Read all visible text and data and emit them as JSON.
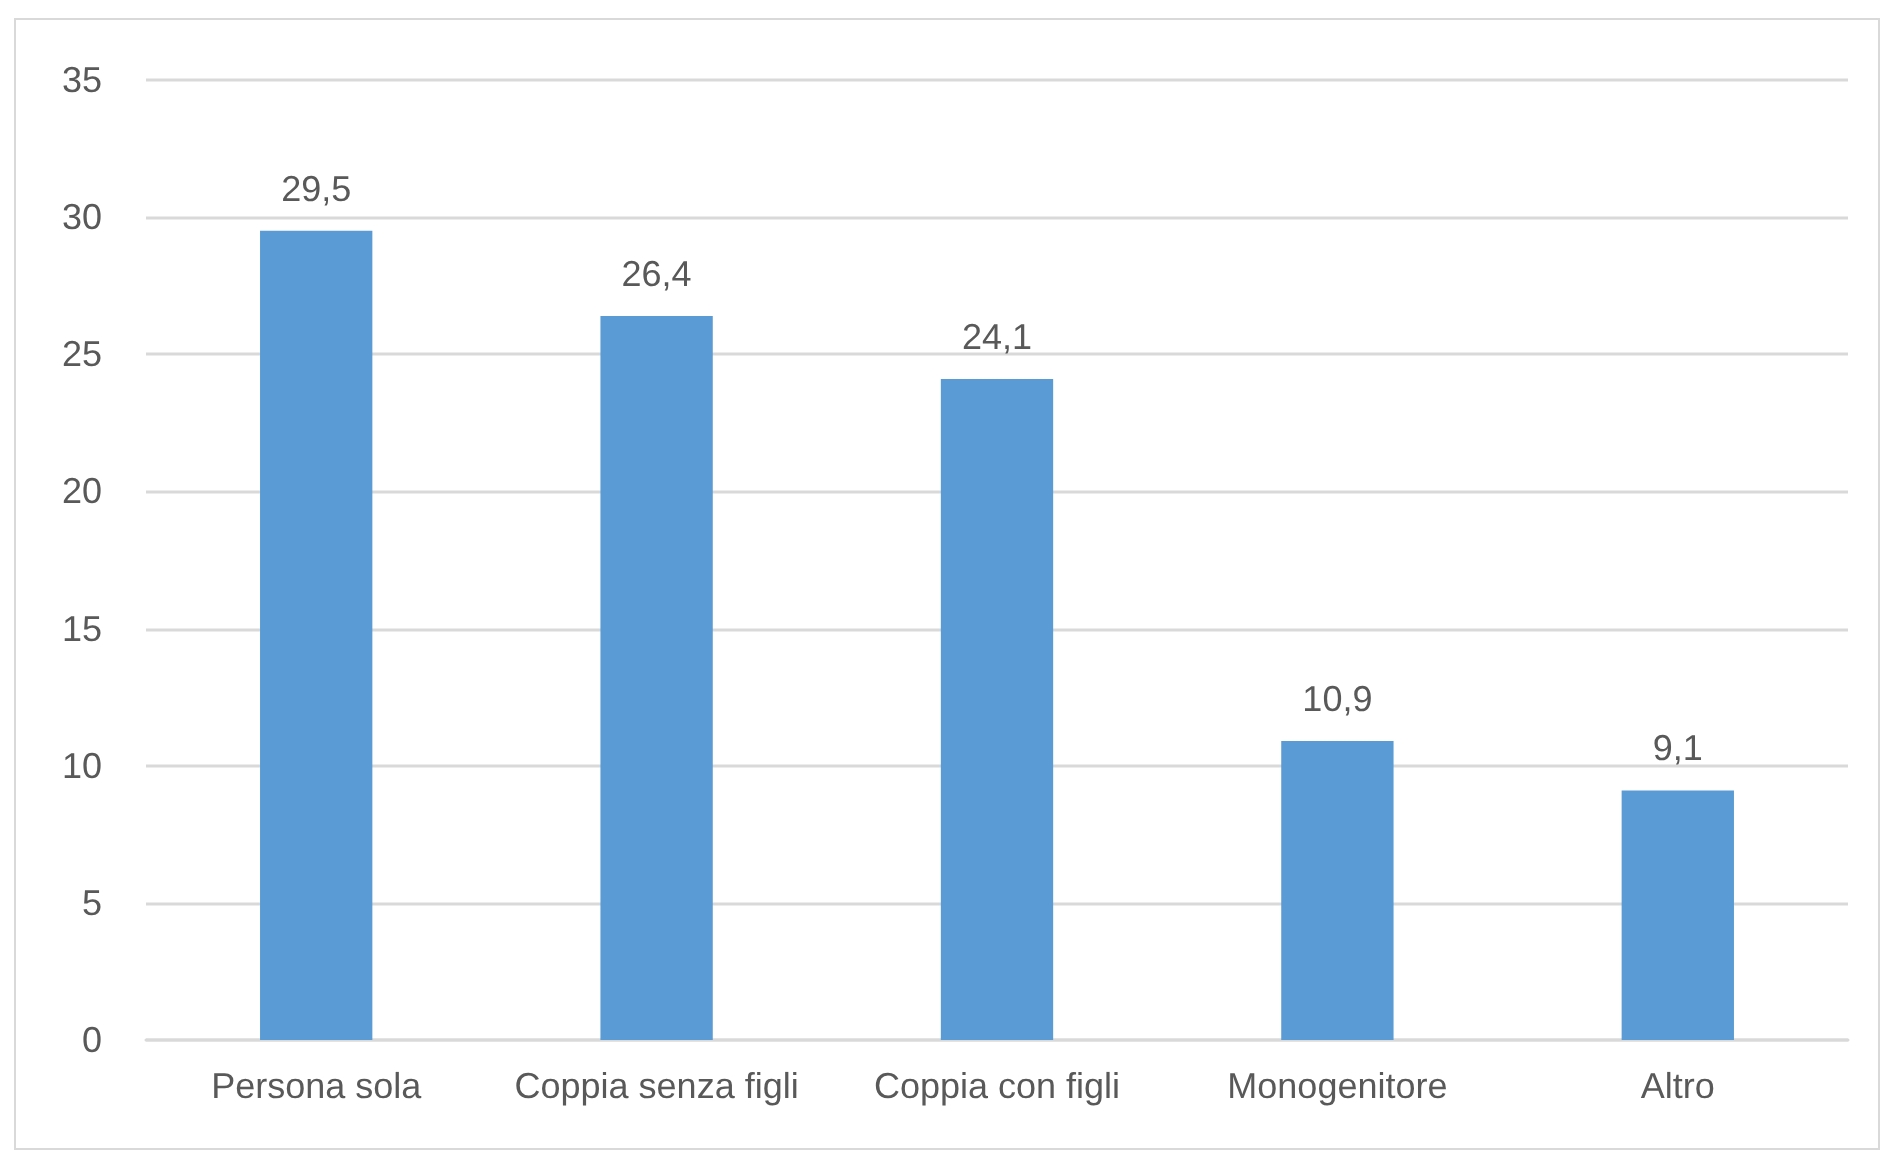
{
  "chart_data": {
    "type": "bar",
    "categories": [
      "Persona sola",
      "Coppia senza figli",
      "Coppia con figli",
      "Monogenitore",
      "Altro"
    ],
    "values": [
      29.5,
      26.4,
      24.1,
      10.9,
      9.1
    ],
    "value_labels": [
      "29,5",
      "26,4",
      "24,1",
      "10,9",
      "9,1"
    ],
    "color": "#5b9bd5",
    "ylim": [
      0,
      35
    ],
    "yticks": [
      0,
      5,
      10,
      15,
      20,
      25,
      30,
      35
    ],
    "grid": "y"
  }
}
